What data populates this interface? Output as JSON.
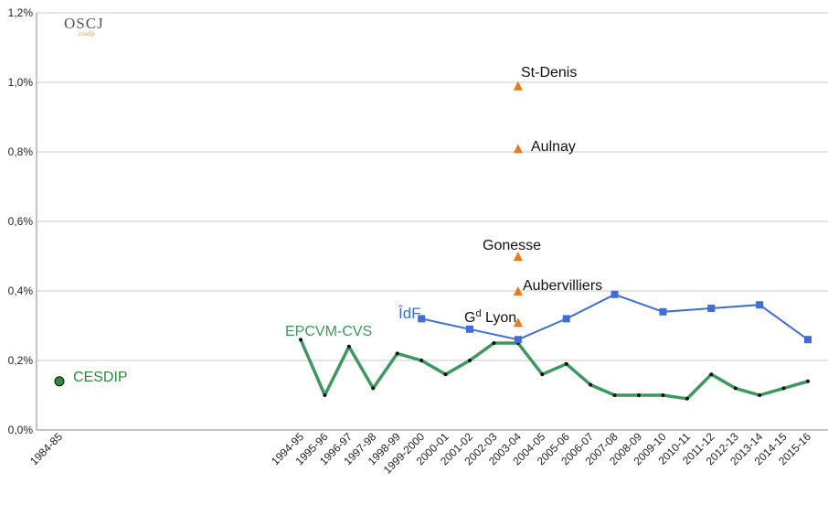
{
  "logo": {
    "text": "OSCJ",
    "subtext": "cesdip"
  },
  "chart_data": {
    "type": "line",
    "title": "",
    "xlabel": "",
    "ylabel": "",
    "ylim": [
      0,
      1.2
    ],
    "yticks": [
      "0,0%",
      "0,2%",
      "0,4%",
      "0,6%",
      "0,8%",
      "1,0%",
      "1,2%"
    ],
    "grid": true,
    "categories": [
      "1984-85",
      "1994-95",
      "1995-96",
      "1996-97",
      "1997-98",
      "1998-99",
      "1999-2000",
      "2000-01",
      "2001-02",
      "2002-03",
      "2003-04",
      "2004-05",
      "2005-06",
      "2006-07",
      "2007-08",
      "2008-09",
      "2009-10",
      "2010-11",
      "2011-12",
      "2012-13",
      "2013-14",
      "2014-15",
      "2015-16"
    ],
    "series": [
      {
        "name": "EPCVM-CVS",
        "color": "#3a9a5c",
        "x": [
          "1994-95",
          "1995-96",
          "1996-97",
          "1997-98",
          "1998-99",
          "1999-2000",
          "2000-01",
          "2001-02",
          "2002-03",
          "2003-04",
          "2004-05",
          "2005-06",
          "2006-07",
          "2007-08",
          "2008-09",
          "2009-10",
          "2010-11",
          "2011-12",
          "2012-13",
          "2013-14",
          "2014-15",
          "2015-16"
        ],
        "values": [
          0.26,
          0.1,
          0.24,
          0.12,
          0.22,
          0.2,
          0.16,
          0.2,
          0.25,
          0.25,
          0.16,
          0.19,
          0.13,
          0.1,
          0.1,
          0.1,
          0.09,
          0.16,
          0.12,
          0.1,
          0.12,
          0.14
        ]
      },
      {
        "name": "ÎdF",
        "color": "#3c6ee0",
        "x": [
          "1999-2000",
          "2001-02",
          "2003-04",
          "2005-06",
          "2007-08",
          "2009-10",
          "2011-12",
          "2013-14",
          "2015-16"
        ],
        "values": [
          0.32,
          0.29,
          0.26,
          0.32,
          0.39,
          0.34,
          0.35,
          0.36,
          0.26
        ]
      },
      {
        "name": "CESDIP",
        "color": "#2e8b3c",
        "x": [
          "1984-85"
        ],
        "values": [
          0.14
        ]
      }
    ],
    "points": [
      {
        "name": "St-Denis",
        "x": "2003-04",
        "value": 0.99
      },
      {
        "name": "Aulnay",
        "x": "2003-04",
        "value": 0.81
      },
      {
        "name": "Gonesse",
        "x": "2003-04",
        "value": 0.5
      },
      {
        "name": "Aubervilliers",
        "x": "2003-04",
        "value": 0.4
      },
      {
        "name": "Gd Lyon",
        "label_main": "G",
        "label_sup": "d",
        "label_rest": " Lyon",
        "x": "2003-04",
        "value": 0.31
      }
    ],
    "points_color": "#f07818"
  }
}
